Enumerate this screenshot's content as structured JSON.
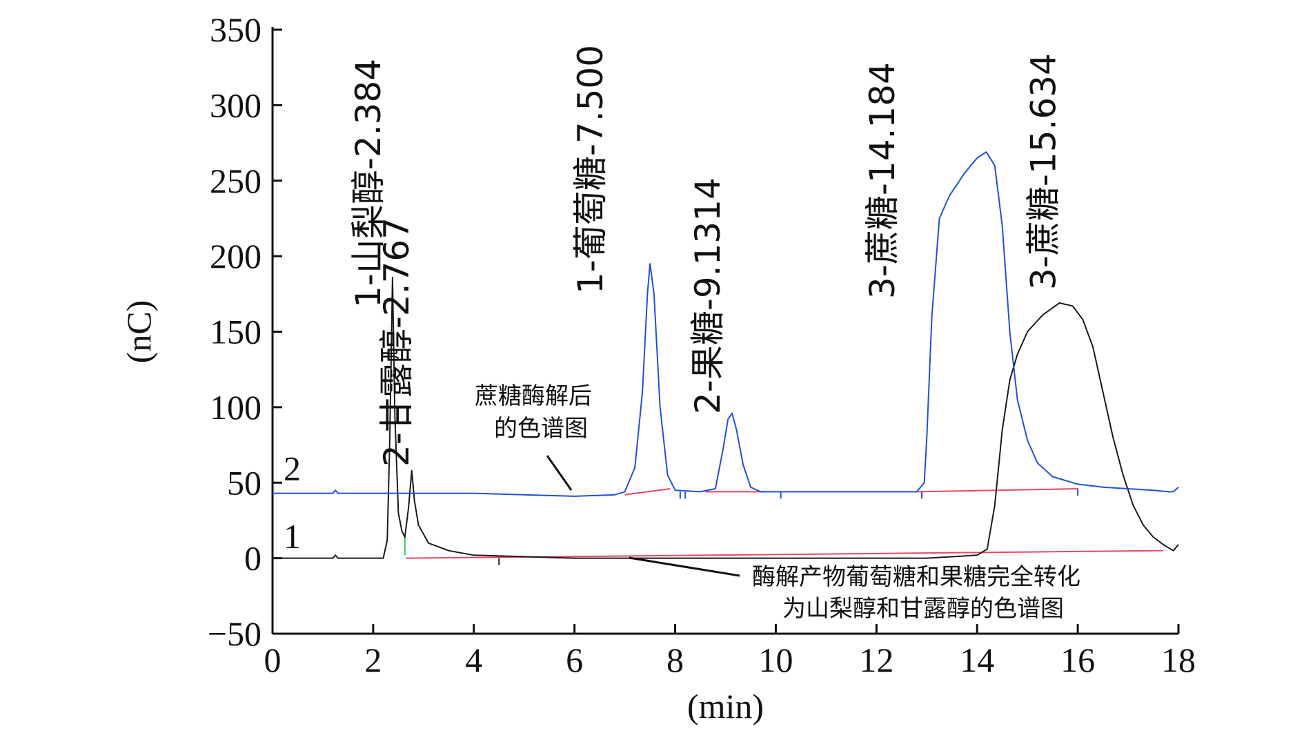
{
  "chart_data": {
    "type": "line",
    "xlabel": "(min)",
    "ylabel": "(nC)",
    "xlim": [
      0,
      18
    ],
    "ylim": [
      -50,
      350
    ],
    "xticks": [
      0,
      2,
      4,
      6,
      8,
      10,
      12,
      14,
      16,
      18
    ],
    "yticks": [
      -50,
      0,
      50,
      100,
      150,
      200,
      250,
      300,
      350
    ],
    "grid": false,
    "colors": {
      "curve1": "#1a1a1a",
      "curve2": "#2050d8",
      "baseline": "#ee4466"
    },
    "curve_labels": [
      {
        "text": "1",
        "x": 0.5,
        "y": 14
      },
      {
        "text": "2",
        "x": 0.5,
        "y": 59
      }
    ],
    "series": [
      {
        "id": "curve1",
        "x": [
          0,
          1.2,
          1.25,
          1.3,
          1.5,
          2.0,
          2.2,
          2.28,
          2.33,
          2.384,
          2.43,
          2.5,
          2.57,
          2.63,
          2.7,
          2.767,
          2.82,
          2.9,
          3.1,
          3.5,
          4.0,
          5.0,
          6.0,
          8.0,
          10.0,
          12.0,
          13.0,
          14.0,
          14.2,
          14.35,
          14.5,
          14.65,
          14.8,
          15.0,
          15.3,
          15.634,
          15.9,
          16.1,
          16.3,
          16.5,
          16.7,
          16.9,
          17.1,
          17.3,
          17.5,
          17.7,
          17.8,
          17.9,
          18.0
        ],
        "y": [
          0,
          0,
          2,
          0,
          0,
          0,
          0,
          12,
          80,
          186,
          95,
          30,
          18,
          14,
          33,
          58,
          38,
          22,
          10,
          5,
          2,
          1,
          0,
          0,
          0,
          0,
          0,
          2,
          6,
          35,
          85,
          118,
          135,
          150,
          161,
          169,
          167,
          158,
          140,
          110,
          80,
          55,
          35,
          22,
          14,
          9,
          7,
          5,
          9
        ]
      },
      {
        "id": "curve2",
        "x": [
          0,
          1.2,
          1.25,
          1.3,
          2.0,
          2.3,
          3.0,
          4.0,
          5.0,
          6.0,
          6.8,
          7.0,
          7.2,
          7.35,
          7.45,
          7.5,
          7.58,
          7.7,
          7.85,
          8.0,
          8.5,
          8.8,
          8.95,
          9.05,
          9.1314,
          9.22,
          9.35,
          9.5,
          9.7,
          10.0,
          11.0,
          12.0,
          12.8,
          12.95,
          13.0,
          13.1,
          13.25,
          13.45,
          13.75,
          14.0,
          14.184,
          14.35,
          14.5,
          14.65,
          14.8,
          15.0,
          15.2,
          15.5,
          16.0,
          16.5,
          17.0,
          17.5,
          17.8,
          17.9,
          18.0
        ],
        "y": [
          43,
          43,
          45,
          43,
          43,
          43,
          43,
          43,
          42,
          41,
          42,
          44,
          60,
          110,
          175,
          195,
          175,
          100,
          55,
          45,
          44,
          46,
          72,
          92,
          96,
          85,
          62,
          47,
          44,
          44,
          44,
          44,
          44,
          50,
          80,
          160,
          225,
          240,
          255,
          265,
          269,
          260,
          220,
          150,
          105,
          78,
          63,
          54,
          49,
          47,
          46,
          45,
          44,
          44,
          47
        ]
      }
    ],
    "peak_labels": [
      {
        "text": "1-山梨醇-2.384",
        "x": 2.384
      },
      {
        "text": "2-甘露醇-2.767",
        "x": 2.95
      },
      {
        "text": "1-葡萄糖-7.500",
        "x": 6.8
      },
      {
        "text": "2-果糖-9.1314",
        "x": 9.1314
      },
      {
        "text": "3-蔗糖-14.184",
        "x": 12.6
      },
      {
        "text": "3-蔗糖-15.634",
        "x": 15.8
      }
    ],
    "annotations": [
      {
        "lines": [
          "蔗糖酶解后",
          "的色谱图"
        ]
      },
      {
        "lines": [
          "酶解产物葡萄糖和果糖完全转化",
          "为山梨醇和甘露醇的色谱图"
        ]
      }
    ]
  }
}
